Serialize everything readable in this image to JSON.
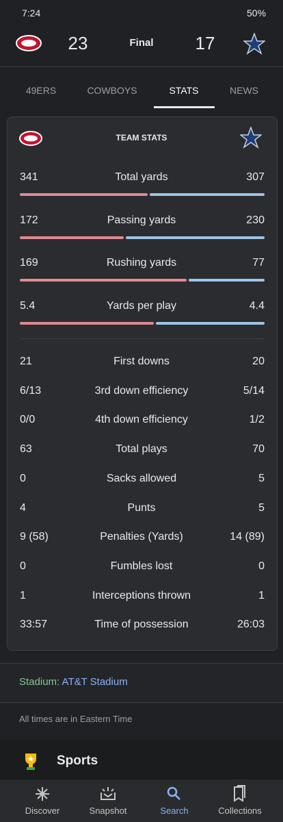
{
  "status_bar": {
    "time": "7:24",
    "battery": "50%"
  },
  "header": {
    "home_score": 23,
    "game_status": "Final",
    "away_score": 17
  },
  "tabs": [
    "49ERS",
    "COWBOYS",
    "STATS",
    "NEWS"
  ],
  "team_stats": {
    "title": "TEAM STATS",
    "bar_stats": [
      {
        "label": "Total yards",
        "home": 341,
        "away": 307
      },
      {
        "label": "Passing yards",
        "home": 172,
        "away": 230
      },
      {
        "label": "Rushing yards",
        "home": 169,
        "away": 77
      },
      {
        "label": "Yards per play",
        "home": 5.4,
        "away": 4.4
      }
    ],
    "other_stats": [
      {
        "label": "First downs",
        "home": 21,
        "away": 20
      },
      {
        "label": "3rd down efficiency",
        "home": "6/13",
        "away": "5/14"
      },
      {
        "label": "4th down efficiency",
        "home": "0/0",
        "away": "1/2"
      },
      {
        "label": "Total plays",
        "home": 63,
        "away": 70
      },
      {
        "label": "Sacks allowed",
        "home": 0,
        "away": 5
      },
      {
        "label": "Punts",
        "home": 4,
        "away": 5
      },
      {
        "label": "Penalties (Yards)",
        "home": "9 (58)",
        "away": "14 (89)"
      },
      {
        "label": "Fumbles lost",
        "home": 0,
        "away": 0
      },
      {
        "label": "Interceptions thrown",
        "home": 1,
        "away": 1
      },
      {
        "label": "Time of possession",
        "home": "33:57",
        "away": "26:03"
      }
    ]
  },
  "venue": {
    "label": "Stadium:",
    "name": "AT&T Stadium"
  },
  "note": "All times are in Eastern Time",
  "section": "Sports",
  "nav": [
    "Discover",
    "Snapshot",
    "Search",
    "Collections"
  ]
}
